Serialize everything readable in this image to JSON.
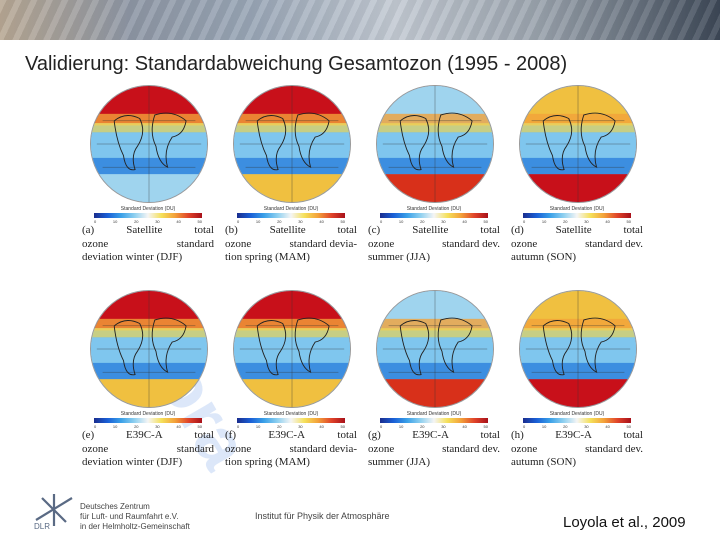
{
  "slide": {
    "title": "Validierung: Standardabweichung Gesamtozon (1995 - 2008)",
    "watermark": "Zora",
    "colorbar_title": "Standard Deviation (DU)",
    "colorbar_ticks": [
      "0",
      "10",
      "20",
      "30",
      "40",
      "50"
    ],
    "panels": [
      {
        "row0_left": "(a)",
        "row0_mid": "Satellite",
        "row0_right": "total",
        "row1_left": "ozone",
        "row1_right": "standard",
        "row2_left": "deviation winter (DJF)",
        "row2_right": ""
      },
      {
        "row0_left": "(b)",
        "row0_mid": "Satellite",
        "row0_right": "total",
        "row1_left": "ozone",
        "row1_right": "standard devia-",
        "row2_left": "tion spring (MAM)",
        "row2_right": ""
      },
      {
        "row0_left": "(c)",
        "row0_mid": "Satellite",
        "row0_right": "total",
        "row1_left": "ozone",
        "row1_right": "standard dev.",
        "row2_left": "summer (JJA)",
        "row2_right": ""
      },
      {
        "row0_left": "(d)",
        "row0_mid": "Satellite",
        "row0_right": "total",
        "row1_left": "ozone",
        "row1_right": "standard dev.",
        "row2_left": "autumn (SON)",
        "row2_right": ""
      },
      {
        "row0_left": "(e)",
        "row0_mid": "E39C-A",
        "row0_right": "total",
        "row1_left": "ozone",
        "row1_right": "standard",
        "row2_left": "deviation winter (DJF)",
        "row2_right": ""
      },
      {
        "row0_left": "(f)",
        "row0_mid": "E39C-A",
        "row0_right": "total",
        "row1_left": "ozone",
        "row1_right": "standard devia-",
        "row2_left": "tion spring (MAM)",
        "row2_right": ""
      },
      {
        "row0_left": "(g)",
        "row0_mid": "E39C-A",
        "row0_right": "total",
        "row1_left": "ozone",
        "row1_right": "standard dev.",
        "row2_left": "summer (JJA)",
        "row2_right": ""
      },
      {
        "row0_left": "(h)",
        "row0_mid": "E39C-A",
        "row0_right": "total",
        "row1_left": "ozone",
        "row1_right": "standard dev.",
        "row2_left": "autumn (SON)",
        "row2_right": ""
      }
    ],
    "footer": {
      "org_line1": "Deutsches Zentrum",
      "org_line2": "für Luft- und Raumfahrt e.V.",
      "org_line3": "in der Helmholtz-Gemeinschaft",
      "logo_text": "DLR",
      "institute": "Institut für Physik der Atmosphäre",
      "citation": "Loyola et al., 2009"
    }
  }
}
